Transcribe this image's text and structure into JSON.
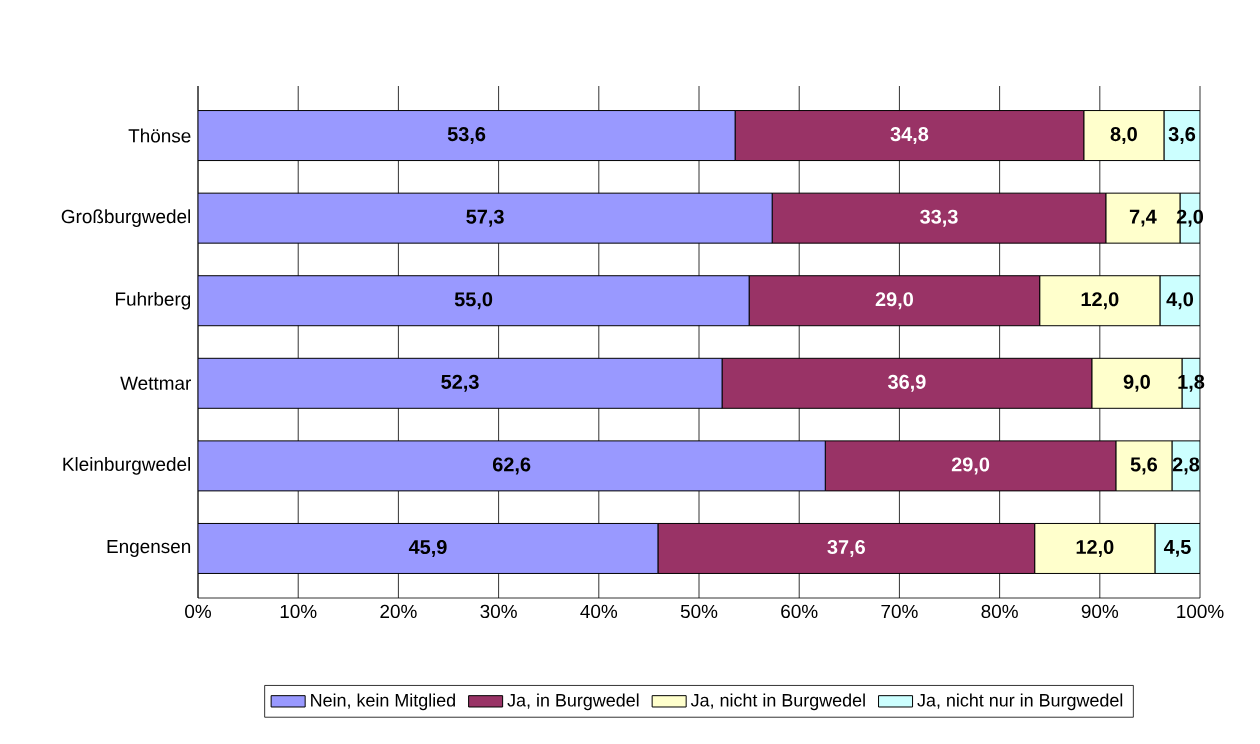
{
  "chart_data": {
    "type": "bar",
    "orientation": "horizontal",
    "stacked": true,
    "categories": [
      "Thönse",
      "Großburgwedel",
      "Fuhrberg",
      "Wettmar",
      "Kleinburgwedel",
      "Engensen"
    ],
    "series": [
      {
        "name": "Nein, kein Mitglied",
        "color": "#9999ff",
        "values": [
          53.6,
          57.3,
          55.0,
          52.3,
          62.6,
          45.9
        ],
        "value_labels": [
          "53,6",
          "57,3",
          "55,0",
          "52,3",
          "62,6",
          "45,9"
        ]
      },
      {
        "name": "Ja, in Burgwedel",
        "color": "#993366",
        "values": [
          34.8,
          33.3,
          29.0,
          36.9,
          29.0,
          37.6
        ],
        "value_labels": [
          "34,8",
          "33,3",
          "29,0",
          "36,9",
          "29,0",
          "37,6"
        ]
      },
      {
        "name": "Ja, nicht in Burgwedel",
        "color": "#ffffcc",
        "values": [
          8.0,
          7.4,
          12.0,
          9.0,
          5.6,
          12.0
        ],
        "value_labels": [
          "8,0",
          "7,4",
          "12,0",
          "9,0",
          "5,6",
          "12,0"
        ]
      },
      {
        "name": "Ja, nicht nur in Burgwedel",
        "color": "#ccffff",
        "values": [
          3.6,
          2.0,
          4.0,
          1.8,
          2.8,
          4.5
        ],
        "value_labels": [
          "3,6",
          "2,0",
          "4,0",
          "1,8",
          "2,8",
          "4,5"
        ]
      }
    ],
    "xlim": [
      0,
      100
    ],
    "xticks": [
      {
        "value": 0,
        "label": "0%"
      },
      {
        "value": 10,
        "label": "10%"
      },
      {
        "value": 20,
        "label": "20%"
      },
      {
        "value": 30,
        "label": "30%"
      },
      {
        "value": 40,
        "label": "40%"
      },
      {
        "value": 50,
        "label": "50%"
      },
      {
        "value": 60,
        "label": "60%"
      },
      {
        "value": 70,
        "label": "70%"
      },
      {
        "value": 80,
        "label": "80%"
      },
      {
        "value": 90,
        "label": "90%"
      },
      {
        "value": 100,
        "label": "100%"
      }
    ],
    "grid": "x",
    "legend": "bottom"
  }
}
